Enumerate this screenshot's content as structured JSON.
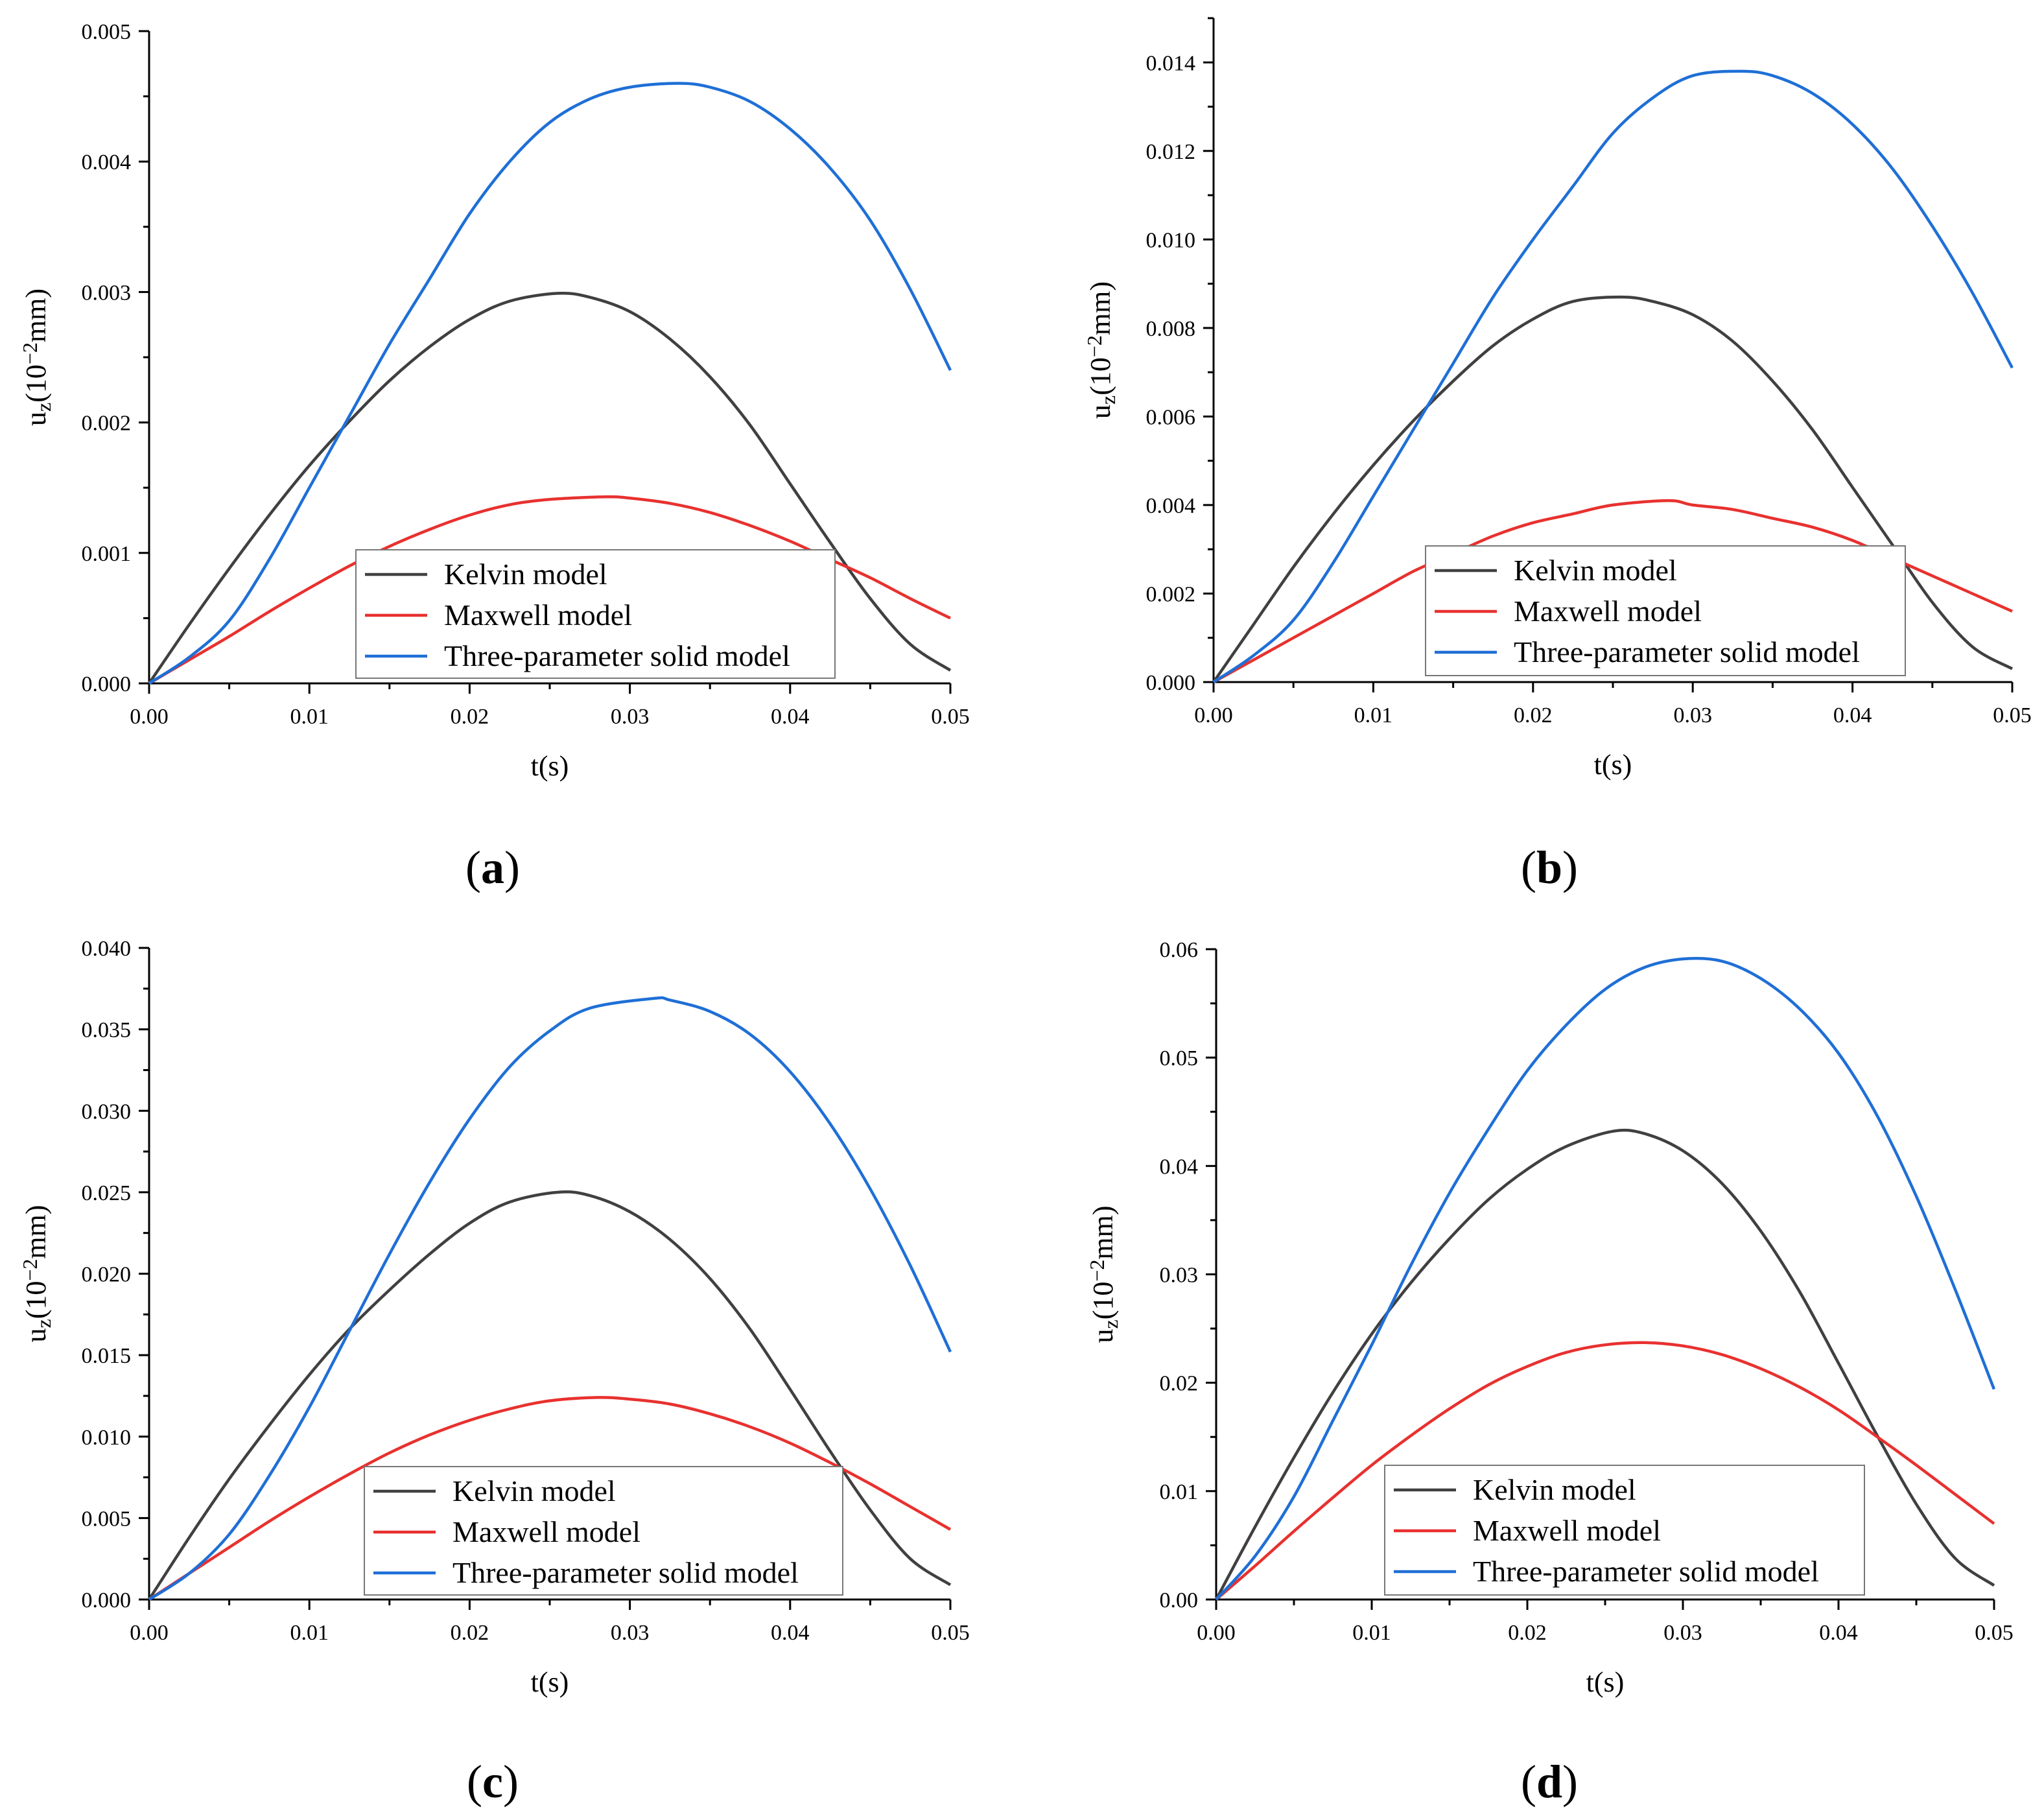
{
  "figure": {
    "colors": {
      "kelvin": "#404040",
      "maxwell": "#e8312f",
      "three_param": "#1f6fd6",
      "axis": "#000000"
    }
  },
  "chart_data": [
    {
      "panel": "a",
      "panel_label": {
        "open": "(",
        "letter": "a",
        "close": ")"
      },
      "type": "line",
      "xlabel": "t(s)",
      "ylabel": {
        "main": "u",
        "sub": "z",
        "rest1": "(10",
        "sup": "−2",
        "rest2": "mm)"
      },
      "xlim": [
        0,
        0.05
      ],
      "ylim": [
        0,
        0.005
      ],
      "xticks": [
        0,
        0.01,
        0.02,
        0.03,
        0.04,
        0.05
      ],
      "xtick_labels": [
        "0.00",
        "0.01",
        "0.02",
        "0.03",
        "0.04",
        "0.05"
      ],
      "yticks": [
        0,
        0.001,
        0.002,
        0.003,
        0.004,
        0.005
      ],
      "ytick_labels": [
        "0.000",
        "0.001",
        "0.002",
        "0.003",
        "0.004",
        "0.005"
      ],
      "legend_position": "bottom-center",
      "series": [
        {
          "name": "Kelvin model",
          "color": "#404040",
          "x": [
            0,
            0.0025,
            0.005,
            0.0075,
            0.01,
            0.0125,
            0.015,
            0.0175,
            0.02,
            0.0225,
            0.0255,
            0.0275,
            0.03,
            0.0325,
            0.035,
            0.0375,
            0.04,
            0.0425,
            0.045,
            0.0475,
            0.05
          ],
          "values": [
            0,
            0.00045,
            0.00088,
            0.00129,
            0.00167,
            0.00201,
            0.00232,
            0.00258,
            0.00279,
            0.00293,
            0.00299,
            0.00296,
            0.00285,
            0.00264,
            0.00235,
            0.00198,
            0.00153,
            0.00108,
            0.00065,
            0.0003,
            0.0001
          ]
        },
        {
          "name": "Maxwell model",
          "color": "#e8312f",
          "x": [
            0,
            0.0025,
            0.005,
            0.0075,
            0.01,
            0.0125,
            0.015,
            0.0175,
            0.02,
            0.0225,
            0.025,
            0.0285,
            0.03,
            0.0325,
            0.035,
            0.0375,
            0.04,
            0.0425,
            0.045,
            0.0475,
            0.05
          ],
          "values": [
            0,
            0.00018,
            0.00036,
            0.00055,
            0.00073,
            0.0009,
            0.00105,
            0.00118,
            0.00129,
            0.00137,
            0.00141,
            0.00143,
            0.00142,
            0.00138,
            0.00131,
            0.00121,
            0.00109,
            0.00095,
            0.00081,
            0.00065,
            0.0005
          ]
        },
        {
          "name": "Three-parameter solid model",
          "color": "#1f6fd6",
          "x": [
            0,
            0.0025,
            0.005,
            0.0075,
            0.01,
            0.0125,
            0.015,
            0.0175,
            0.02,
            0.0225,
            0.025,
            0.0275,
            0.03,
            0.033,
            0.035,
            0.0375,
            0.04,
            0.0425,
            0.045,
            0.0475,
            0.05
          ],
          "values": [
            0,
            0.0002,
            0.00048,
            0.00095,
            0.0015,
            0.00205,
            0.0026,
            0.0031,
            0.0036,
            0.004,
            0.0043,
            0.00448,
            0.00457,
            0.0046,
            0.00457,
            0.00446,
            0.00425,
            0.00395,
            0.00355,
            0.00302,
            0.0024
          ]
        }
      ],
      "legend_entries": [
        "Kelvin model",
        "Maxwell model",
        "Three-parameter solid model"
      ]
    },
    {
      "panel": "b",
      "panel_label": {
        "open": "(",
        "letter": "b",
        "close": ")"
      },
      "type": "line",
      "xlabel": "t(s)",
      "ylabel": {
        "main": "u",
        "sub": "z",
        "rest1": "(10",
        "sup": "−2",
        "rest2": "mm)"
      },
      "xlim": [
        0,
        0.05
      ],
      "ylim": [
        0,
        0.015
      ],
      "xticks": [
        0,
        0.01,
        0.02,
        0.03,
        0.04,
        0.05
      ],
      "xtick_labels": [
        "0.00",
        "0.01",
        "0.02",
        "0.03",
        "0.04",
        "0.05"
      ],
      "yticks": [
        0,
        0.002,
        0.004,
        0.006,
        0.008,
        0.01,
        0.012,
        0.014
      ],
      "ytick_labels": [
        "0.000",
        "0.002",
        "0.004",
        "0.006",
        "0.008",
        "0.010",
        "0.012",
        "0.014"
      ],
      "legend_position": "bottom-center",
      "series": [
        {
          "name": "Kelvin model",
          "color": "#404040",
          "x": [
            0,
            0.0025,
            0.005,
            0.0075,
            0.01,
            0.0125,
            0.015,
            0.0175,
            0.02,
            0.0225,
            0.0255,
            0.0275,
            0.03,
            0.0325,
            0.035,
            0.0375,
            0.04,
            0.0425,
            0.045,
            0.0475,
            0.05
          ],
          "values": [
            0,
            0.0013,
            0.0026,
            0.0038,
            0.0049,
            0.0059,
            0.0068,
            0.0076,
            0.0082,
            0.0086,
            0.0087,
            0.0086,
            0.0083,
            0.0077,
            0.0068,
            0.0057,
            0.0044,
            0.0031,
            0.0018,
            0.0008,
            0.0003
          ]
        },
        {
          "name": "Maxwell model",
          "color": "#e8312f",
          "x": [
            0,
            0.0025,
            0.005,
            0.0075,
            0.01,
            0.0125,
            0.015,
            0.0175,
            0.02,
            0.0225,
            0.025,
            0.0285,
            0.03,
            0.0325,
            0.035,
            0.0375,
            0.04,
            0.0425,
            0.045,
            0.0475,
            0.05
          ],
          "values": [
            0,
            0.0005,
            0.001,
            0.0015,
            0.002,
            0.0025,
            0.0029,
            0.0033,
            0.0036,
            0.0038,
            0.004,
            0.0041,
            0.004,
            0.0039,
            0.0037,
            0.0035,
            0.0032,
            0.0028,
            0.0024,
            0.002,
            0.0016
          ]
        },
        {
          "name": "Three-parameter solid model",
          "color": "#1f6fd6",
          "x": [
            0,
            0.0025,
            0.005,
            0.0075,
            0.01,
            0.0125,
            0.015,
            0.0175,
            0.02,
            0.0225,
            0.025,
            0.0275,
            0.03,
            0.033,
            0.035,
            0.0375,
            0.04,
            0.0425,
            0.045,
            0.0475,
            0.05
          ],
          "values": [
            0,
            0.0006,
            0.0014,
            0.0027,
            0.0042,
            0.0057,
            0.0072,
            0.0087,
            0.01,
            0.0112,
            0.0124,
            0.0132,
            0.0137,
            0.0138,
            0.0137,
            0.0133,
            0.0126,
            0.0116,
            0.0103,
            0.0088,
            0.0071
          ]
        }
      ],
      "legend_entries": [
        "Kelvin model",
        "Maxwell model",
        "Three-parameter solid model"
      ]
    },
    {
      "panel": "c",
      "panel_label": {
        "open": "(",
        "letter": "c",
        "close": ")"
      },
      "type": "line",
      "xlabel": "t(s)",
      "ylabel": {
        "main": "u",
        "sub": "z",
        "rest1": "(10",
        "sup": "−2",
        "rest2": "mm)"
      },
      "xlim": [
        0,
        0.05
      ],
      "ylim": [
        0,
        0.04
      ],
      "xticks": [
        0,
        0.01,
        0.02,
        0.03,
        0.04,
        0.05
      ],
      "xtick_labels": [
        "0.00",
        "0.01",
        "0.02",
        "0.03",
        "0.04",
        "0.05"
      ],
      "yticks": [
        0,
        0.005,
        0.01,
        0.015,
        0.02,
        0.025,
        0.03,
        0.035,
        0.04
      ],
      "ytick_labels": [
        "0.000",
        "0.005",
        "0.010",
        "0.015",
        "0.020",
        "0.025",
        "0.030",
        "0.035",
        "0.040"
      ],
      "legend_position": "bottom-center",
      "series": [
        {
          "name": "Kelvin model",
          "color": "#404040",
          "x": [
            0,
            0.0025,
            0.005,
            0.0075,
            0.01,
            0.0125,
            0.015,
            0.0175,
            0.02,
            0.0225,
            0.0255,
            0.0275,
            0.03,
            0.0325,
            0.035,
            0.0375,
            0.04,
            0.0425,
            0.045,
            0.0475,
            0.05
          ],
          "values": [
            0,
            0.0038,
            0.0074,
            0.0107,
            0.0138,
            0.0166,
            0.019,
            0.0212,
            0.0231,
            0.0244,
            0.025,
            0.0248,
            0.0238,
            0.0221,
            0.0197,
            0.0166,
            0.0129,
            0.0091,
            0.0055,
            0.0025,
            0.0009
          ]
        },
        {
          "name": "Maxwell model",
          "color": "#e8312f",
          "x": [
            0,
            0.0025,
            0.005,
            0.0075,
            0.01,
            0.0125,
            0.015,
            0.0175,
            0.02,
            0.0225,
            0.025,
            0.028,
            0.03,
            0.0325,
            0.035,
            0.0375,
            0.04,
            0.0425,
            0.045,
            0.0475,
            0.05
          ],
          "values": [
            0,
            0.0016,
            0.0032,
            0.0048,
            0.0063,
            0.0077,
            0.009,
            0.0101,
            0.011,
            0.0117,
            0.0122,
            0.0124,
            0.0123,
            0.012,
            0.0114,
            0.0106,
            0.0096,
            0.0084,
            0.0071,
            0.0057,
            0.0043
          ]
        },
        {
          "name": "Three-parameter solid model",
          "color": "#1f6fd6",
          "x": [
            0,
            0.0025,
            0.005,
            0.0075,
            0.01,
            0.0125,
            0.015,
            0.0175,
            0.02,
            0.0225,
            0.025,
            0.0275,
            0.0315,
            0.0325,
            0.035,
            0.0375,
            0.04,
            0.0425,
            0.045,
            0.0475,
            0.05
          ],
          "values": [
            0,
            0.0016,
            0.004,
            0.0076,
            0.0118,
            0.0165,
            0.0212,
            0.0256,
            0.0295,
            0.0327,
            0.0349,
            0.0363,
            0.0369,
            0.0368,
            0.0361,
            0.0347,
            0.0324,
            0.0292,
            0.0252,
            0.0205,
            0.0152
          ]
        }
      ],
      "legend_entries": [
        "Kelvin model",
        "Maxwell model",
        "Three-parameter solid model"
      ]
    },
    {
      "panel": "d",
      "panel_label": {
        "open": "(",
        "letter": "d",
        "close": ")"
      },
      "type": "line",
      "xlabel": "t(s)",
      "ylabel": {
        "main": "u",
        "sub": "z",
        "rest1": "(10",
        "sup": "−2",
        "rest2": "mm)"
      },
      "xlim": [
        0,
        0.05
      ],
      "ylim": [
        0,
        0.06
      ],
      "xticks": [
        0,
        0.01,
        0.02,
        0.03,
        0.04,
        0.05
      ],
      "xtick_labels": [
        "0.00",
        "0.01",
        "0.02",
        "0.03",
        "0.04",
        "0.05"
      ],
      "yticks": [
        0,
        0.01,
        0.02,
        0.03,
        0.04,
        0.05,
        0.06
      ],
      "ytick_labels": [
        "0.00",
        "0.01",
        "0.02",
        "0.03",
        "0.04",
        "0.05",
        "0.06"
      ],
      "legend_position": "bottom-center",
      "series": [
        {
          "name": "Kelvin model",
          "color": "#404040",
          "x": [
            0,
            0.0025,
            0.005,
            0.0075,
            0.01,
            0.0125,
            0.015,
            0.0175,
            0.02,
            0.0225,
            0.0255,
            0.0275,
            0.03,
            0.0325,
            0.035,
            0.0375,
            0.04,
            0.0425,
            0.045,
            0.0475,
            0.05
          ],
          "values": [
            0,
            0.0067,
            0.0131,
            0.0191,
            0.0245,
            0.0292,
            0.0333,
            0.0369,
            0.0397,
            0.0418,
            0.0432,
            0.043,
            0.0414,
            0.0384,
            0.034,
            0.0284,
            0.0218,
            0.0151,
            0.0088,
            0.0038,
            0.0013
          ]
        },
        {
          "name": "Maxwell model",
          "color": "#e8312f",
          "x": [
            0,
            0.0025,
            0.005,
            0.0075,
            0.01,
            0.0125,
            0.015,
            0.0175,
            0.02,
            0.0225,
            0.025,
            0.0275,
            0.03,
            0.0325,
            0.035,
            0.0375,
            0.04,
            0.0425,
            0.045,
            0.0475,
            0.05
          ],
          "values": [
            0,
            0.0031,
            0.0063,
            0.0094,
            0.0124,
            0.0151,
            0.0176,
            0.0198,
            0.0215,
            0.0228,
            0.0235,
            0.0237,
            0.0234,
            0.0226,
            0.0213,
            0.0196,
            0.0175,
            0.015,
            0.0124,
            0.0097,
            0.007
          ]
        },
        {
          "name": "Three-parameter solid model",
          "color": "#1f6fd6",
          "x": [
            0,
            0.0025,
            0.005,
            0.0075,
            0.01,
            0.0125,
            0.015,
            0.0175,
            0.02,
            0.0225,
            0.025,
            0.0275,
            0.03,
            0.0325,
            0.035,
            0.0375,
            0.04,
            0.0425,
            0.045,
            0.0475,
            0.05
          ],
          "values": [
            0,
            0.004,
            0.0095,
            0.0165,
            0.0235,
            0.0308,
            0.0375,
            0.0434,
            0.0488,
            0.053,
            0.0563,
            0.0583,
            0.0591,
            0.0589,
            0.0573,
            0.0545,
            0.0504,
            0.0446,
            0.0372,
            0.0286,
            0.0194
          ]
        }
      ],
      "legend_entries": [
        "Kelvin model",
        "Maxwell model",
        "Three-parameter solid model"
      ]
    }
  ]
}
